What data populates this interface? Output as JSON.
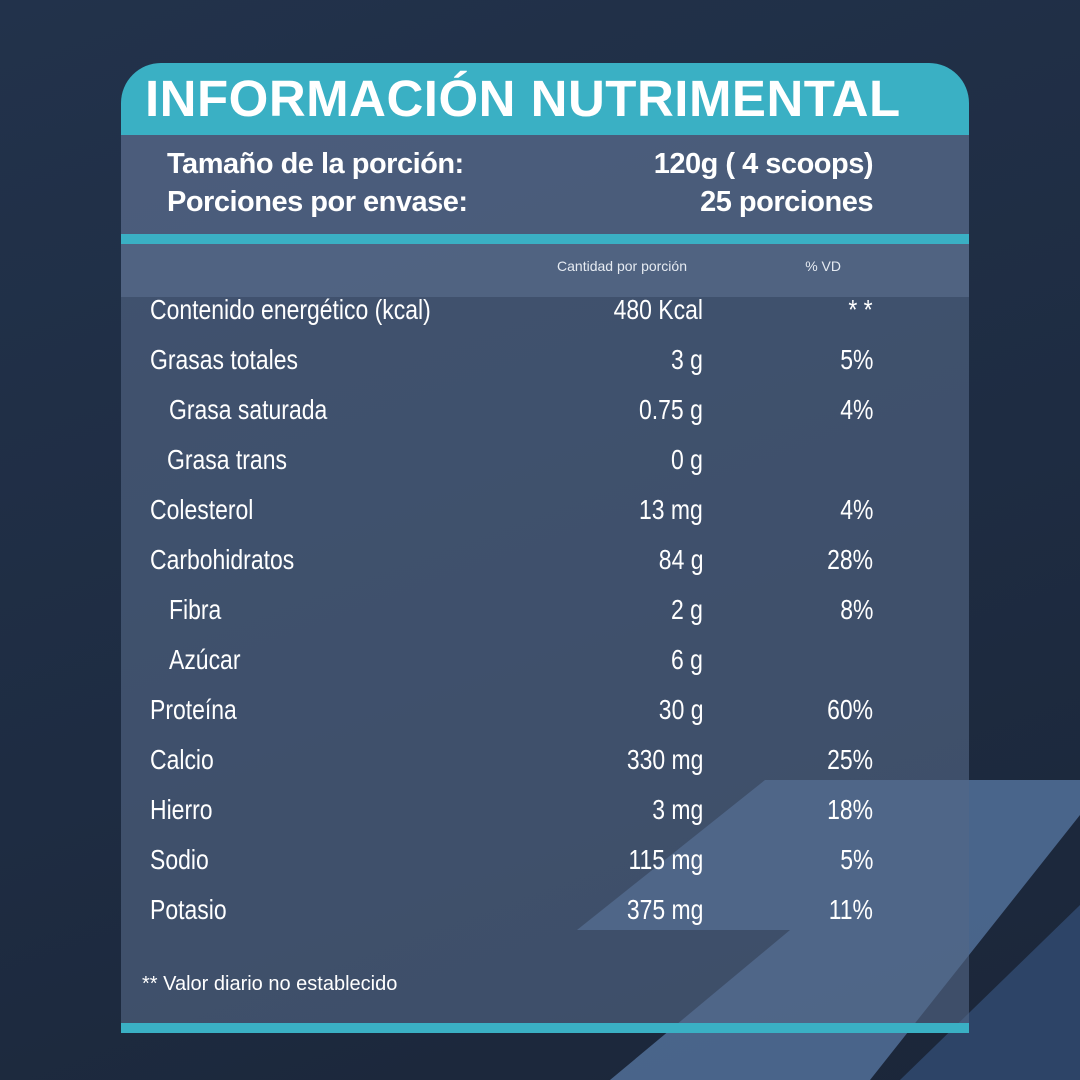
{
  "title": "INFORMACIÓN NUTRIMENTAL",
  "serving": {
    "size_label": "Tamaño de la porción:",
    "size_value": "120g ( 4 scoops)",
    "servings_label": "Porciones por envase:",
    "servings_value": "25 porciones"
  },
  "table": {
    "amount_header": "Cantidad por porción",
    "vd_header": "% VD",
    "rows": [
      {
        "name": "Contenido energético (kcal)",
        "amount": "480 Kcal",
        "vd": "* *"
      },
      {
        "name": "Grasas totales",
        "amount": "3 g",
        "vd": "5%"
      },
      {
        "name": "Grasa saturada",
        "amount": "0.75 g",
        "vd": "4%"
      },
      {
        "name": "Grasa trans",
        "amount": "0 g",
        "vd": ""
      },
      {
        "name": "Colesterol",
        "amount": "13 mg",
        "vd": "4%"
      },
      {
        "name": "Carbohidratos",
        "amount": "84 g",
        "vd": "28%"
      },
      {
        "name": "Fibra",
        "amount": "2 g",
        "vd": "8%"
      },
      {
        "name": "Azúcar",
        "amount": "6 g",
        "vd": ""
      },
      {
        "name": "Proteína",
        "amount": "30 g",
        "vd": "60%"
      },
      {
        "name": "Calcio",
        "amount": "330 mg",
        "vd": "25%"
      },
      {
        "name": "Hierro",
        "amount": "3 mg",
        "vd": "18%"
      },
      {
        "name": "Sodio",
        "amount": "115 mg",
        "vd": "5%"
      },
      {
        "name": "Potasio",
        "amount": "375 mg",
        "vd": "11%"
      }
    ]
  },
  "footnote": "** Valor diario no establecido",
  "colors": {
    "accent": "#3ab0c4",
    "background": "#22324b",
    "panel": "#4f6181"
  }
}
